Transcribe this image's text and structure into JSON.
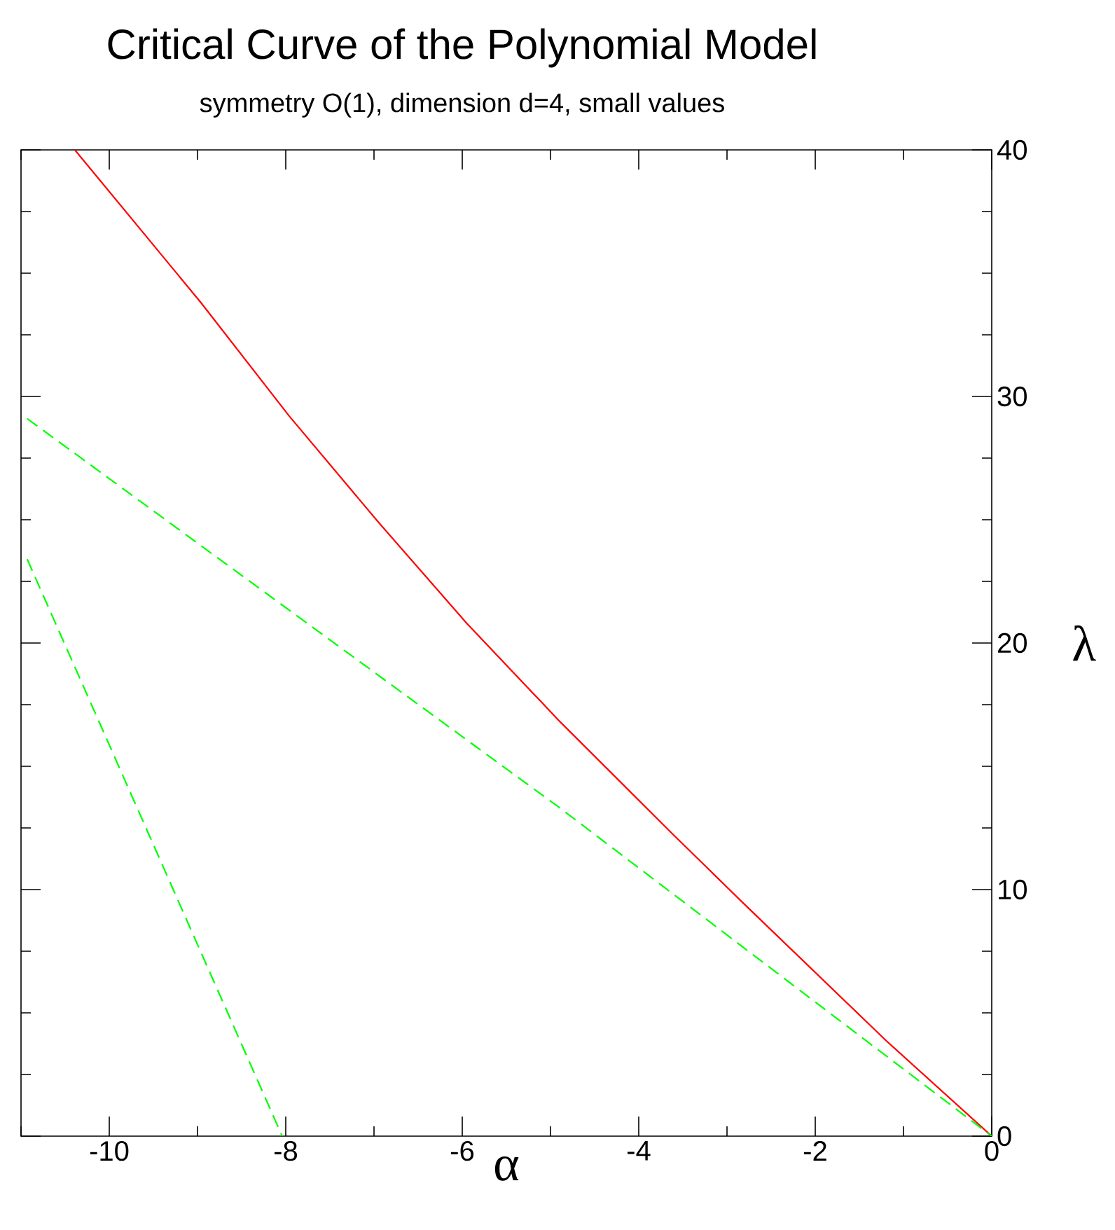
{
  "chart_data": {
    "type": "line",
    "title": "Critical Curve of the Polynomial Model",
    "subtitle": "symmetry O(1), dimension d=4, small values",
    "xlabel": "α",
    "ylabel": "λ",
    "xlim": [
      -11,
      0
    ],
    "ylim": [
      0,
      40
    ],
    "xticks": [
      {
        "value": -11,
        "label": null
      },
      -10,
      {
        "value": -9,
        "label": null
      },
      -8,
      {
        "value": -7,
        "label": null
      },
      -6,
      {
        "value": -5,
        "label": null
      },
      -4,
      {
        "value": -3,
        "label": null
      },
      -2,
      {
        "value": -1,
        "label": null
      },
      0
    ],
    "yticks": [
      0,
      {
        "value": 2.5,
        "label": null
      },
      {
        "value": 5,
        "label": null
      },
      {
        "value": 7.5,
        "label": null
      },
      10,
      {
        "value": 12.5,
        "label": null
      },
      {
        "value": 15,
        "label": null
      },
      {
        "value": 17.5,
        "label": null
      },
      20,
      {
        "value": 22.5,
        "label": null
      },
      {
        "value": 25,
        "label": null
      },
      {
        "value": 27.5,
        "label": null
      },
      30,
      {
        "value": 32.5,
        "label": null
      },
      {
        "value": 35,
        "label": null
      },
      {
        "value": 37.5,
        "label": null
      },
      40
    ],
    "series": [
      {
        "color": "#ff0000",
        "line_style": "solid",
        "x": [
          -10.39,
          -8.96,
          -7.96,
          -6.95,
          -5.95,
          -4.89,
          -3.63,
          -2.83,
          -1.19,
          0
        ],
        "values": [
          40,
          33.8,
          29.2,
          24.9,
          20.8,
          16.8,
          12.3,
          9.5,
          3.85,
          0
        ]
      },
      {
        "color": "#00ff00",
        "line_style": "dashed",
        "x": [
          -10.93,
          -4.89,
          0
        ],
        "values": [
          29.1,
          13.3,
          0
        ]
      },
      {
        "color": "#00ff00",
        "line_style": "dashed",
        "x": [
          -10.93,
          -8.04
        ],
        "values": [
          23.4,
          0
        ]
      }
    ]
  }
}
